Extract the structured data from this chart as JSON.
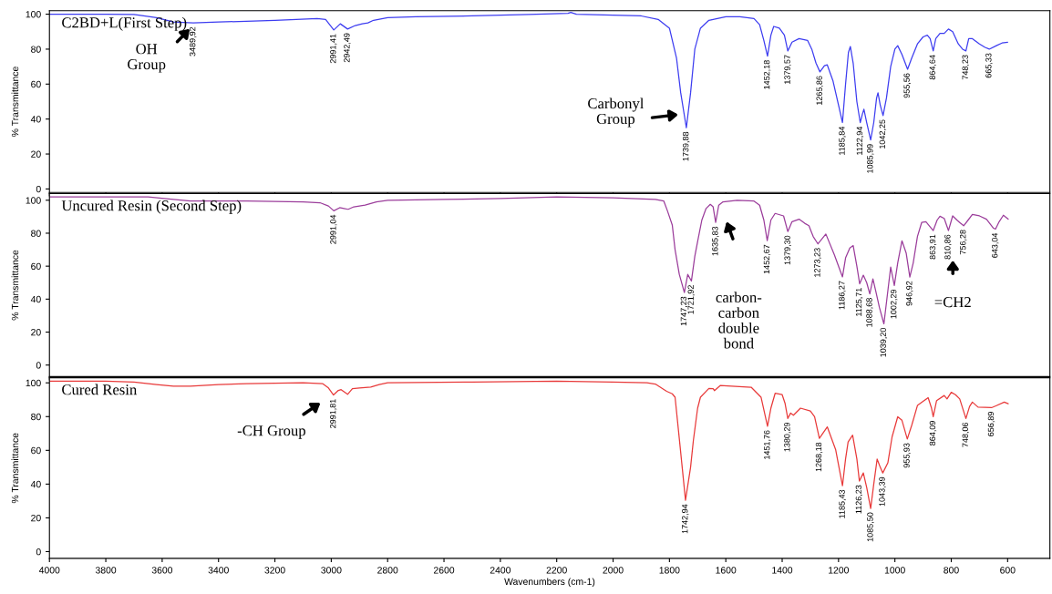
{
  "chart_data": [
    {
      "type": "line",
      "ylabel": "% Transmittance",
      "xlim": [
        4000,
        450
      ],
      "ylim": [
        -2,
        102
      ],
      "xticks": [
        4000,
        3800,
        3600,
        3400,
        3200,
        3000,
        2800,
        2600,
        2400,
        2200,
        2000,
        1800,
        1600,
        1400,
        1200,
        1000,
        800,
        600
      ],
      "yticks": [
        0,
        20,
        40,
        60,
        80,
        100
      ],
      "tick_labels": "y",
      "x": [
        4000,
        3800,
        3700,
        3620,
        3560,
        3490,
        3400,
        3200,
        3050,
        3020,
        2991,
        2968,
        2942,
        2915,
        2890,
        2870,
        2850,
        2800,
        2700,
        2500,
        2300,
        2160,
        2150,
        2130,
        2000,
        1900,
        1840,
        1800,
        1775,
        1760,
        1740,
        1725,
        1710,
        1690,
        1660,
        1600,
        1550,
        1500,
        1480,
        1465,
        1452,
        1440,
        1430,
        1410,
        1392,
        1380,
        1365,
        1340,
        1310,
        1295,
        1280,
        1266,
        1250,
        1240,
        1220,
        1200,
        1186,
        1175,
        1165,
        1158,
        1148,
        1135,
        1123,
        1115,
        1110,
        1100,
        1086,
        1075,
        1065,
        1060,
        1052,
        1042,
        1030,
        1015,
        1000,
        990,
        975,
        955,
        940,
        920,
        900,
        885,
        875,
        864,
        855,
        840,
        825,
        810,
        795,
        775,
        760,
        748,
        738,
        725,
        700,
        680,
        665,
        640,
        620,
        600
      ],
      "series": [
        {
          "name": "C2BD+L(First Step)",
          "color": "#3d3df0",
          "values": [
            100,
            100,
            99.8,
            98,
            95.5,
            95,
            95.5,
            96.5,
            97.5,
            97,
            91,
            94.5,
            91.5,
            93.5,
            94.5,
            95,
            96.5,
            98,
            98.5,
            99,
            99.8,
            100.5,
            101,
            100,
            99.5,
            99,
            97,
            92,
            75,
            55,
            35,
            55,
            80,
            92,
            96.5,
            98.5,
            98.5,
            97.5,
            94,
            85,
            76,
            88,
            93,
            92,
            88,
            79,
            84,
            86,
            85,
            80,
            72,
            67,
            70.5,
            71,
            62,
            48,
            38,
            60,
            78,
            81.5,
            72,
            50,
            38,
            43,
            45.6,
            38,
            28,
            38,
            52,
            55,
            48,
            42,
            52,
            70,
            80,
            82,
            77,
            68.5,
            75,
            83,
            87,
            88,
            86,
            79,
            86,
            89,
            89,
            91.5,
            90,
            83,
            80,
            79,
            86,
            86,
            83,
            81,
            80,
            82,
            83.5,
            84
          ]
        }
      ],
      "annotations": [
        {
          "text": "3489,92",
          "x": 3489.92,
          "y": 95
        },
        {
          "text": "2991,41",
          "x": 2991.41,
          "y": 91
        },
        {
          "text": "2942,49",
          "x": 2942.49,
          "y": 91.5
        },
        {
          "text": "1739,88",
          "x": 1739.88,
          "y": 35
        },
        {
          "text": "1452,18",
          "x": 1452.18,
          "y": 76
        },
        {
          "text": "1379,57",
          "x": 1379.57,
          "y": 79
        },
        {
          "text": "1265,86",
          "x": 1265.86,
          "y": 67
        },
        {
          "text": "1185,84",
          "x": 1185.84,
          "y": 38
        },
        {
          "text": "1122,94",
          "x": 1122.94,
          "y": 38
        },
        {
          "text": "1085,99",
          "x": 1085.99,
          "y": 28
        },
        {
          "text": "1042,25",
          "x": 1042.25,
          "y": 42
        },
        {
          "text": "955,56",
          "x": 955.56,
          "y": 68.5
        },
        {
          "text": "864,64",
          "x": 864.64,
          "y": 79
        },
        {
          "text": "748,23",
          "x": 748.23,
          "y": 79
        },
        {
          "text": "665,33",
          "x": 665.33,
          "y": 80
        },
        "OH\nGroup",
        "Carbonyl\nGroup"
      ]
    },
    {
      "type": "line",
      "ylabel": "% Transmittance",
      "xlim": [
        4000,
        450
      ],
      "ylim": [
        -7,
        104
      ],
      "xticks": [
        4000,
        3800,
        3600,
        3400,
        3200,
        3000,
        2800,
        2600,
        2400,
        2200,
        2000,
        1800,
        1600,
        1400,
        1200,
        1000,
        800,
        600
      ],
      "yticks": [
        0,
        20,
        40,
        60,
        80,
        100
      ],
      "tick_labels": "y",
      "x": [
        4000,
        3800,
        3650,
        3560,
        3500,
        3300,
        3100,
        3040,
        3010,
        2991,
        2970,
        2955,
        2940,
        2920,
        2880,
        2840,
        2800,
        2600,
        2400,
        2200,
        2000,
        1850,
        1820,
        1808,
        1790,
        1780,
        1765,
        1747,
        1735,
        1722,
        1710,
        1700,
        1685,
        1670,
        1655,
        1645,
        1636,
        1625,
        1610,
        1560,
        1500,
        1480,
        1465,
        1453,
        1440,
        1425,
        1395,
        1380,
        1365,
        1340,
        1320,
        1305,
        1290,
        1273,
        1245,
        1215,
        1186,
        1175,
        1160,
        1148,
        1135,
        1125,
        1112,
        1100,
        1089,
        1078,
        1068,
        1055,
        1039,
        1025,
        1015,
        1002,
        990,
        975,
        960,
        947,
        935,
        920,
        905,
        890,
        864,
        850,
        840,
        825,
        810,
        795,
        780,
        770,
        756,
        740,
        725,
        700,
        675,
        650,
        643,
        630,
        615,
        598
      ],
      "series": [
        {
          "name": "Uncured Resin (Second Step)",
          "color": "#9b3d9b",
          "values": [
            102,
            102,
            102,
            100.5,
            99.5,
            99.5,
            99,
            98.5,
            96.5,
            93.6,
            95.5,
            95,
            94.5,
            96,
            97,
            99,
            100,
            100.5,
            101,
            102,
            101.5,
            100.5,
            99.5,
            94,
            85,
            70,
            55,
            44,
            55,
            51,
            66,
            75,
            88,
            95,
            97.5,
            96,
            86.5,
            97,
            99,
            100,
            99.5,
            97,
            88,
            75.5,
            88,
            92,
            90.5,
            81,
            87,
            88.5,
            86,
            84.5,
            78,
            73.5,
            79.5,
            67,
            53.5,
            65,
            71,
            72.5,
            60,
            49.3,
            54.5,
            50,
            43.2,
            52.3,
            45,
            35,
            25,
            45,
            59.4,
            48.3,
            62,
            75.4,
            68,
            53.4,
            62,
            78,
            86.5,
            87,
            81.6,
            88,
            90.3,
            89,
            81.6,
            90.5,
            88,
            86.5,
            84.5,
            88,
            91.4,
            90.5,
            88.5,
            83,
            82.5,
            87,
            90.9,
            88.5
          ]
        }
      ],
      "annotations": [
        {
          "text": "2991,04",
          "x": 2991.04,
          "y": 93.6
        },
        {
          "text": "1747,23",
          "x": 1747.23,
          "y": 44
        },
        {
          "text": "1721,92",
          "x": 1721.92,
          "y": 51
        },
        {
          "text": "1635,83",
          "x": 1635.83,
          "y": 86.5
        },
        {
          "text": "1452,67",
          "x": 1452.67,
          "y": 75.5
        },
        {
          "text": "1379,30",
          "x": 1379.3,
          "y": 81
        },
        {
          "text": "1273,23",
          "x": 1273.23,
          "y": 73.5
        },
        {
          "text": "1186,27",
          "x": 1186.27,
          "y": 53.5
        },
        {
          "text": "1125,71",
          "x": 1125.71,
          "y": 49.3
        },
        {
          "text": "1088,68",
          "x": 1088.68,
          "y": 43.2
        },
        {
          "text": "1039,20",
          "x": 1039.2,
          "y": 25
        },
        {
          "text": "1002,29",
          "x": 1002.29,
          "y": 48.3
        },
        {
          "text": "946,92",
          "x": 946.92,
          "y": 53.4
        },
        {
          "text": "863,91",
          "x": 863.91,
          "y": 81.6
        },
        {
          "text": "810,86",
          "x": 810.86,
          "y": 81.6
        },
        {
          "text": "756,28",
          "x": 756.28,
          "y": 84.5
        },
        {
          "text": "643,04",
          "x": 643.04,
          "y": 82.5
        },
        "carbon-\ncarbon\ndouble\nbond",
        "=CH2"
      ]
    },
    {
      "type": "line",
      "xlabel": "Wavenumbers (cm-1)",
      "ylabel": "% Transmittance",
      "xlim": [
        4000,
        450
      ],
      "ylim": [
        -4,
        103
      ],
      "xticks": [
        4000,
        3800,
        3600,
        3400,
        3200,
        3000,
        2800,
        2600,
        2400,
        2200,
        2000,
        1800,
        1600,
        1400,
        1200,
        1000,
        800,
        600
      ],
      "yticks": [
        0,
        20,
        40,
        60,
        80,
        100
      ],
      "x": [
        4000,
        3800,
        3700,
        3620,
        3560,
        3500,
        3400,
        3300,
        3100,
        3030,
        3010,
        2992,
        2975,
        2965,
        2942,
        2925,
        2900,
        2860,
        2830,
        2800,
        2500,
        2200,
        2000,
        1880,
        1850,
        1810,
        1790,
        1780,
        1762,
        1743,
        1725,
        1715,
        1700,
        1690,
        1660,
        1645,
        1640,
        1620,
        1510,
        1475,
        1452,
        1440,
        1425,
        1400,
        1390,
        1380,
        1370,
        1360,
        1335,
        1300,
        1285,
        1268,
        1240,
        1210,
        1186,
        1175,
        1166,
        1150,
        1135,
        1126,
        1112,
        1100,
        1086,
        1075,
        1063,
        1052,
        1043,
        1025,
        1010,
        990,
        975,
        956,
        940,
        920,
        900,
        882,
        870,
        864,
        852,
        825,
        815,
        800,
        785,
        770,
        748,
        735,
        725,
        705,
        680,
        657,
        640,
        612,
        598
      ],
      "series": [
        {
          "name": "Cured Resin",
          "color": "#e83a3a",
          "values": [
            101,
            101,
            100.5,
            99,
            98,
            98,
            99,
            99.5,
            100,
            99.5,
            97,
            92.8,
            95.5,
            96,
            93.2,
            96.5,
            97,
            97.5,
            99,
            100,
            100.5,
            101,
            100.5,
            100,
            99.3,
            95,
            93.5,
            91.5,
            62,
            30.4,
            50,
            66,
            85,
            91.5,
            96.7,
            96.5,
            95.4,
            98.4,
            97.4,
            91.5,
            74.3,
            85,
            93.8,
            93,
            88,
            78.9,
            82.1,
            80.8,
            85,
            83.3,
            80,
            67.1,
            73.9,
            60.3,
            39,
            55,
            65,
            69,
            55,
            41.8,
            46.6,
            38,
            25.6,
            40,
            54.8,
            50,
            46.6,
            52.6,
            68,
            79.9,
            77.8,
            66.7,
            75,
            86.6,
            89,
            91.2,
            85,
            79.9,
            89.5,
            92.5,
            90.5,
            94.4,
            93,
            90.5,
            78.9,
            86,
            88.6,
            85.6,
            85.5,
            85.3,
            86.5,
            88.6,
            87.6
          ]
        }
      ],
      "annotations": [
        {
          "text": "2991,81",
          "x": 2991.81,
          "y": 92.8
        },
        {
          "text": "1742,94",
          "x": 1742.94,
          "y": 30.4
        },
        {
          "text": "1451,76",
          "x": 1451.76,
          "y": 74.3
        },
        {
          "text": "1380,29",
          "x": 1380.29,
          "y": 78.9
        },
        {
          "text": "1268,18",
          "x": 1268.18,
          "y": 67.1
        },
        {
          "text": "1185,43",
          "x": 1185.43,
          "y": 39
        },
        {
          "text": "1126,23",
          "x": 1126.23,
          "y": 41.8
        },
        {
          "text": "1085,50",
          "x": 1085.5,
          "y": 25.6
        },
        {
          "text": "1043,39",
          "x": 1043.39,
          "y": 46.6
        },
        {
          "text": "955,93",
          "x": 955.93,
          "y": 66.7
        },
        {
          "text": "864,09",
          "x": 864.09,
          "y": 79.9
        },
        {
          "text": "748,06",
          "x": 748.06,
          "y": 78.9
        },
        {
          "text": "656,89",
          "x": 656.89,
          "y": 85.3
        },
        "-CH Group"
      ]
    }
  ]
}
